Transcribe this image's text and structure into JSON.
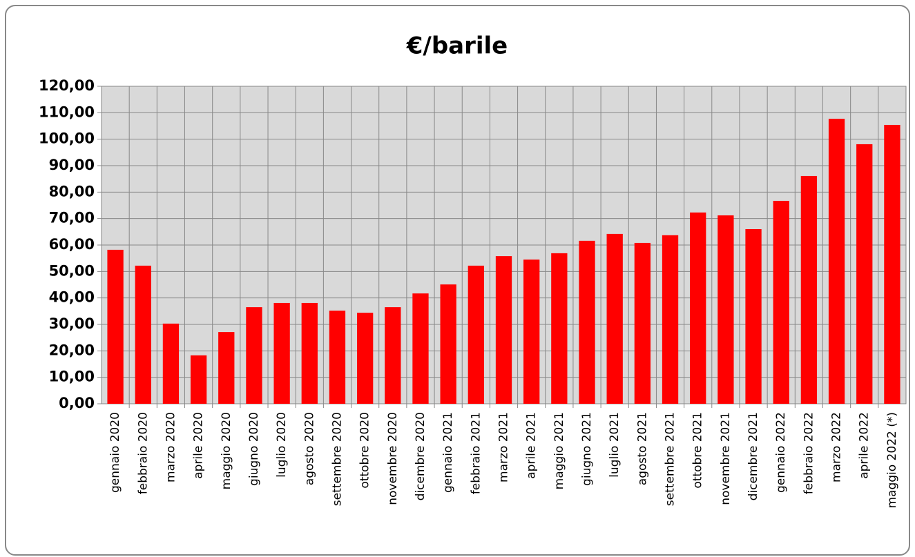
{
  "chart_data": {
    "type": "bar",
    "title": "€/barile",
    "categories": [
      "gennaio 2020",
      "febbraio 2020",
      "marzo 2020",
      "aprile 2020",
      "maggio 2020",
      "giugno 2020",
      "luglio 2020",
      "agosto 2020",
      "settembre 2020",
      "ottobre 2020",
      "novembre 2020",
      "dicembre 2020",
      "gennaio 2021",
      "febbraio 2021",
      "marzo 2021",
      "aprile 2021",
      "maggio 2021",
      "giugno 2021",
      "luglio 2021",
      "agosto 2021",
      "settembre 2021",
      "ottobre 2021",
      "novembre 2021",
      "dicembre 2021",
      "gennaio 2022",
      "febbraio 2022",
      "marzo 2022",
      "aprile 2022",
      "maggio 2022 (*)"
    ],
    "values": [
      58.2,
      52.2,
      30.3,
      18.3,
      27.1,
      36.5,
      38.1,
      38.1,
      35.2,
      34.4,
      36.5,
      41.7,
      45.1,
      52.2,
      55.8,
      54.5,
      56.9,
      61.6,
      64.2,
      60.8,
      63.7,
      72.3,
      71.2,
      66.0,
      76.7,
      86.1,
      107.7,
      98.1,
      105.4
    ],
    "color": "#ff0000",
    "ylim": [
      0,
      120
    ],
    "yticks": [
      {
        "value": 0,
        "label": "0,00"
      },
      {
        "value": 10,
        "label": "10,00"
      },
      {
        "value": 20,
        "label": "20,00"
      },
      {
        "value": 30,
        "label": "30,00"
      },
      {
        "value": 40,
        "label": "40,00"
      },
      {
        "value": 50,
        "label": "50,00"
      },
      {
        "value": 60,
        "label": "60,00"
      },
      {
        "value": 70,
        "label": "70,00"
      },
      {
        "value": 80,
        "label": "80,00"
      },
      {
        "value": 90,
        "label": "90,00"
      },
      {
        "value": 100,
        "label": "100,00"
      },
      {
        "value": 110,
        "label": "110,00"
      },
      {
        "value": 120,
        "label": "120,00"
      }
    ],
    "grid": true
  }
}
